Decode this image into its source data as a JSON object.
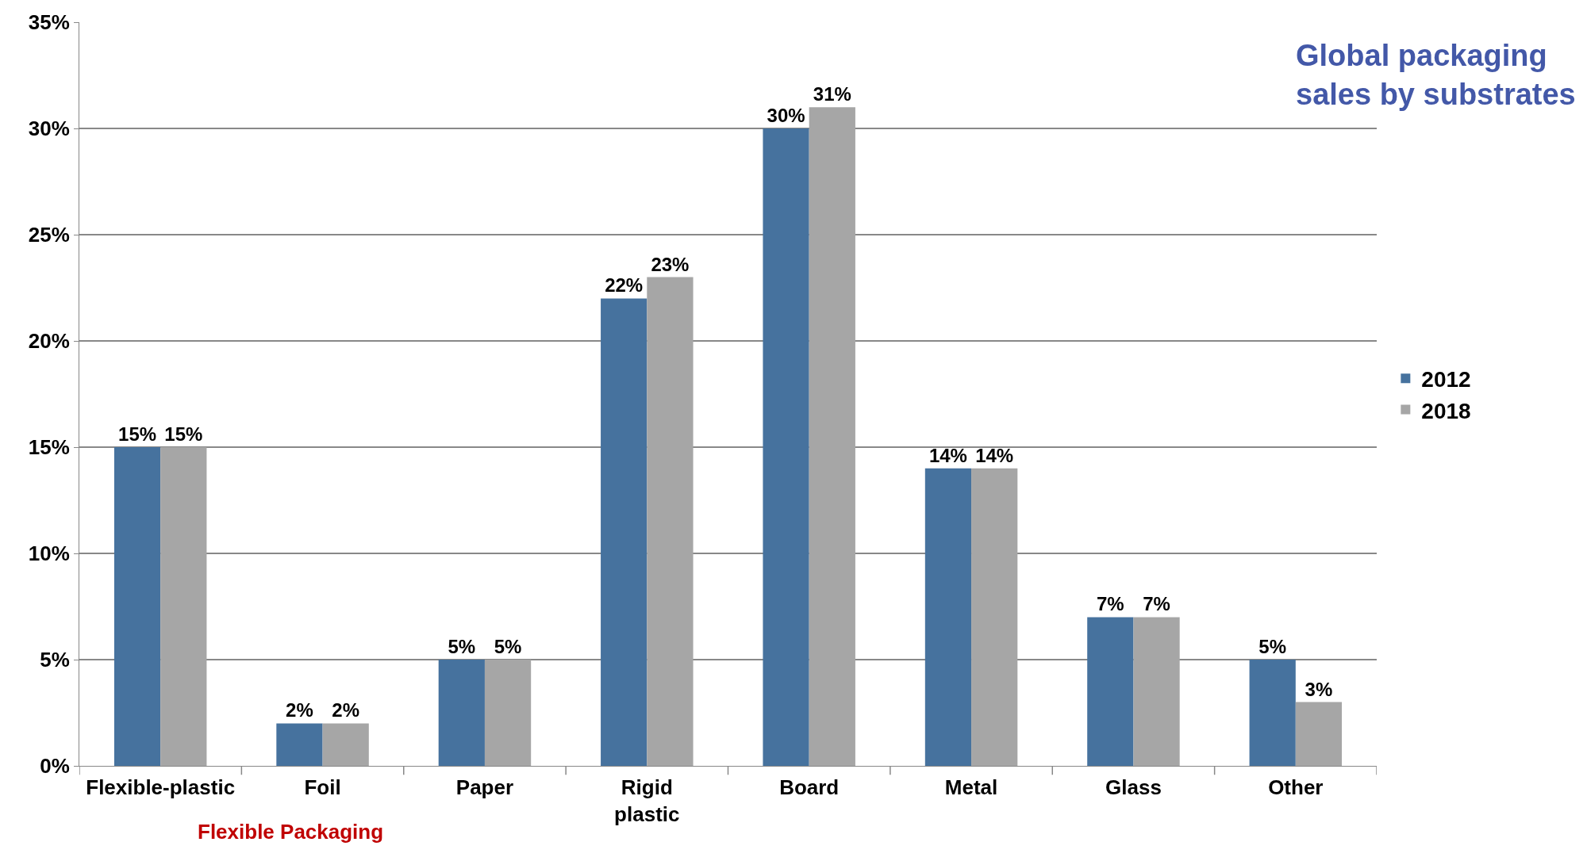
{
  "chart_data": {
    "type": "bar",
    "title": "Global packaging\nsales by substrates",
    "categories": [
      "Flexible-plastic",
      "Foil",
      "Paper",
      "Rigid\nplastic",
      "Board",
      "Metal",
      "Glass",
      "Other"
    ],
    "series": [
      {
        "name": "2012",
        "color": "#46729e",
        "values": [
          15,
          2,
          5,
          22,
          30,
          14,
          7,
          5
        ],
        "value_labels": [
          "15%",
          "2%",
          "5%",
          "22%",
          "30%",
          "14%",
          "7%",
          "5%"
        ]
      },
      {
        "name": "2018",
        "color": "#a6a6a6",
        "values": [
          15,
          2,
          5,
          23,
          31,
          14,
          7,
          3
        ],
        "value_labels": [
          "15%",
          "2%",
          "5%",
          "23%",
          "31%",
          "14%",
          "7%",
          "3%"
        ]
      }
    ],
    "ylim": [
      0,
      35
    ],
    "yticks": [
      {
        "value": 0,
        "label": "0%"
      },
      {
        "value": 5,
        "label": "5%"
      },
      {
        "value": 10,
        "label": "10%"
      },
      {
        "value": 15,
        "label": "15%"
      },
      {
        "value": 20,
        "label": "20%"
      },
      {
        "value": 25,
        "label": "25%"
      },
      {
        "value": 30,
        "label": "30%"
      },
      {
        "value": 35,
        "label": "35%"
      }
    ],
    "grid": "y",
    "legend": "right",
    "annotations": [
      "Flexible Packaging"
    ]
  }
}
